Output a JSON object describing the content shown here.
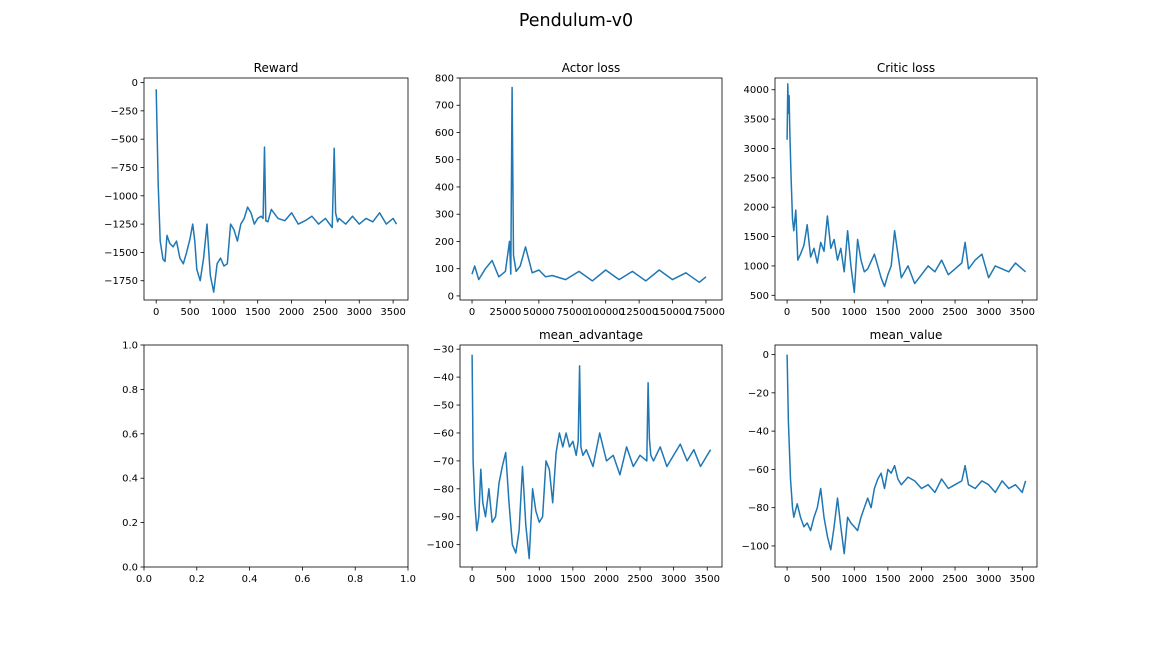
{
  "figure": {
    "suptitle": "Pendulum-v0"
  },
  "series_color": "#1f77b4",
  "chart_data": [
    {
      "id": "reward",
      "type": "line",
      "title": "Reward",
      "xlim": [
        -180,
        3720
      ],
      "ylim": [
        -1920,
        40
      ],
      "xticks": [
        0,
        500,
        1000,
        1500,
        2000,
        2500,
        3000,
        3500
      ],
      "xticklabels": [
        "0",
        "500",
        "1000",
        "1500",
        "2000",
        "2500",
        "3000",
        "3500"
      ],
      "yticks": [
        0,
        -250,
        -500,
        -750,
        -1000,
        -1250,
        -1500,
        -1750
      ],
      "yticklabels": [
        "0",
        "−250",
        "−500",
        "−750",
        "−1000",
        "−1250",
        "−1500",
        "−1750"
      ],
      "x": [
        0,
        30,
        60,
        100,
        130,
        160,
        200,
        250,
        300,
        350,
        400,
        450,
        500,
        540,
        570,
        600,
        650,
        700,
        750,
        800,
        850,
        900,
        950,
        1000,
        1050,
        1100,
        1150,
        1200,
        1250,
        1300,
        1350,
        1400,
        1450,
        1500,
        1550,
        1580,
        1600,
        1620,
        1650,
        1700,
        1800,
        1900,
        2000,
        2100,
        2200,
        2300,
        2400,
        2500,
        2600,
        2630,
        2650,
        2680,
        2700,
        2800,
        2900,
        3000,
        3100,
        3200,
        3300,
        3400,
        3500,
        3550
      ],
      "y": [
        -60,
        -900,
        -1400,
        -1560,
        -1580,
        -1350,
        -1420,
        -1450,
        -1400,
        -1550,
        -1600,
        -1500,
        -1380,
        -1250,
        -1400,
        -1650,
        -1750,
        -1550,
        -1250,
        -1700,
        -1850,
        -1600,
        -1550,
        -1620,
        -1600,
        -1250,
        -1300,
        -1400,
        -1250,
        -1200,
        -1100,
        -1150,
        -1250,
        -1200,
        -1180,
        -1200,
        -570,
        -1220,
        -1230,
        -1120,
        -1200,
        -1220,
        -1150,
        -1250,
        -1220,
        -1180,
        -1250,
        -1200,
        -1280,
        -580,
        -1150,
        -1230,
        -1200,
        -1250,
        -1180,
        -1250,
        -1200,
        -1230,
        -1150,
        -1250,
        -1200,
        -1250
      ]
    },
    {
      "id": "actor-loss",
      "type": "line",
      "title": "Actor loss",
      "xlim": [
        -9000,
        187000
      ],
      "ylim": [
        -15,
        800
      ],
      "xticks": [
        0,
        25000,
        50000,
        75000,
        100000,
        125000,
        150000,
        175000
      ],
      "xticklabels": [
        "0",
        "25000",
        "50000",
        "75000",
        "100000",
        "125000",
        "150000",
        "175000"
      ],
      "yticks": [
        0,
        100,
        200,
        300,
        400,
        500,
        600,
        700,
        800
      ],
      "yticklabels": [
        "0",
        "100",
        "200",
        "300",
        "400",
        "500",
        "600",
        "700",
        "800"
      ],
      "x": [
        0,
        2000,
        5000,
        10000,
        15000,
        20000,
        25000,
        28000,
        29000,
        30000,
        31000,
        33000,
        36000,
        40000,
        45000,
        50000,
        55000,
        60000,
        70000,
        80000,
        90000,
        100000,
        110000,
        120000,
        130000,
        140000,
        150000,
        160000,
        170000,
        175000
      ],
      "y": [
        80,
        110,
        60,
        100,
        130,
        70,
        90,
        200,
        80,
        765,
        150,
        90,
        110,
        180,
        85,
        95,
        70,
        75,
        60,
        90,
        55,
        95,
        60,
        90,
        55,
        95,
        60,
        85,
        50,
        70
      ]
    },
    {
      "id": "critic-loss",
      "type": "line",
      "title": "Critic loss",
      "xlim": [
        -180,
        3720
      ],
      "ylim": [
        420,
        4200
      ],
      "xticks": [
        0,
        500,
        1000,
        1500,
        2000,
        2500,
        3000,
        3500
      ],
      "xticklabels": [
        "0",
        "500",
        "1000",
        "1500",
        "2000",
        "2500",
        "3000",
        "3500"
      ],
      "yticks": [
        500,
        1000,
        1500,
        2000,
        2500,
        3000,
        3500,
        4000
      ],
      "yticklabels": [
        "500",
        "1000",
        "1500",
        "2000",
        "2500",
        "3000",
        "3500",
        "4000"
      ],
      "x": [
        0,
        10,
        20,
        30,
        40,
        60,
        80,
        100,
        130,
        160,
        200,
        250,
        300,
        350,
        400,
        450,
        500,
        550,
        600,
        650,
        700,
        750,
        800,
        850,
        900,
        950,
        1000,
        1050,
        1100,
        1150,
        1200,
        1300,
        1400,
        1450,
        1500,
        1550,
        1600,
        1700,
        1800,
        1900,
        2000,
        2100,
        2200,
        2300,
        2400,
        2500,
        2600,
        2650,
        2700,
        2800,
        2900,
        3000,
        3100,
        3200,
        3300,
        3400,
        3500,
        3550
      ],
      "y": [
        3150,
        4100,
        3600,
        3900,
        3300,
        2500,
        1800,
        1600,
        1950,
        1100,
        1200,
        1350,
        1700,
        1150,
        1300,
        1050,
        1400,
        1250,
        1850,
        1300,
        1450,
        1100,
        1300,
        900,
        1600,
        1000,
        550,
        1450,
        1100,
        900,
        950,
        1200,
        800,
        650,
        850,
        1000,
        1600,
        800,
        1000,
        700,
        850,
        1000,
        900,
        1100,
        850,
        950,
        1050,
        1400,
        950,
        1100,
        1200,
        800,
        1000,
        950,
        900,
        1050,
        950,
        900
      ]
    },
    {
      "id": "empty-axes",
      "type": "line",
      "title": "",
      "xlim": [
        0,
        1
      ],
      "ylim": [
        0,
        1
      ],
      "xticks": [
        0,
        0.2,
        0.4,
        0.6,
        0.8,
        1.0
      ],
      "xticklabels": [
        "0.0",
        "0.2",
        "0.4",
        "0.6",
        "0.8",
        "1.0"
      ],
      "yticks": [
        0,
        0.2,
        0.4,
        0.6,
        0.8,
        1.0
      ],
      "yticklabels": [
        "0.0",
        "0.2",
        "0.4",
        "0.6",
        "0.8",
        "1.0"
      ],
      "x": [],
      "y": []
    },
    {
      "id": "mean-advantage",
      "type": "line",
      "title": "mean_advantage",
      "xlim": [
        -180,
        3720
      ],
      "ylim": [
        -108,
        -28.5
      ],
      "xticks": [
        0,
        500,
        1000,
        1500,
        2000,
        2500,
        3000,
        3500
      ],
      "xticklabels": [
        "0",
        "500",
        "1000",
        "1500",
        "2000",
        "2500",
        "3000",
        "3500"
      ],
      "yticks": [
        -30,
        -40,
        -50,
        -60,
        -70,
        -80,
        -90,
        -100
      ],
      "yticklabels": [
        "−30",
        "−40",
        "−50",
        "−60",
        "−70",
        "−80",
        "−90",
        "−100"
      ],
      "x": [
        0,
        15,
        40,
        70,
        100,
        130,
        160,
        200,
        250,
        300,
        350,
        400,
        450,
        500,
        550,
        600,
        650,
        700,
        750,
        800,
        850,
        900,
        950,
        1000,
        1050,
        1100,
        1150,
        1200,
        1250,
        1300,
        1350,
        1400,
        1450,
        1500,
        1550,
        1580,
        1600,
        1620,
        1650,
        1700,
        1800,
        1900,
        2000,
        2100,
        2200,
        2300,
        2400,
        2500,
        2600,
        2620,
        2640,
        2660,
        2700,
        2800,
        2900,
        3000,
        3100,
        3200,
        3300,
        3400,
        3500,
        3550
      ],
      "y": [
        -32,
        -70,
        -85,
        -95,
        -90,
        -73,
        -85,
        -90,
        -80,
        -92,
        -90,
        -78,
        -72,
        -67,
        -85,
        -100,
        -103,
        -95,
        -72,
        -93,
        -105,
        -80,
        -88,
        -92,
        -90,
        -70,
        -73,
        -85,
        -67,
        -60,
        -65,
        -60,
        -65,
        -63,
        -68,
        -63,
        -36,
        -65,
        -68,
        -66,
        -72,
        -60,
        -70,
        -68,
        -75,
        -65,
        -72,
        -68,
        -70,
        -42,
        -62,
        -68,
        -70,
        -65,
        -72,
        -68,
        -64,
        -70,
        -66,
        -72,
        -68,
        -66
      ]
    },
    {
      "id": "mean-value",
      "type": "line",
      "title": "mean_value",
      "xlim": [
        -180,
        3720
      ],
      "ylim": [
        -111,
        5
      ],
      "xticks": [
        0,
        500,
        1000,
        1500,
        2000,
        2500,
        3000,
        3500
      ],
      "xticklabels": [
        "0",
        "500",
        "1000",
        "1500",
        "2000",
        "2500",
        "3000",
        "3500"
      ],
      "yticks": [
        0,
        -20,
        -40,
        -60,
        -80,
        -100
      ],
      "yticklabels": [
        "0",
        "−20",
        "−40",
        "−60",
        "−80",
        "−100"
      ],
      "x": [
        0,
        20,
        50,
        80,
        100,
        150,
        200,
        250,
        300,
        350,
        400,
        450,
        500,
        550,
        600,
        650,
        700,
        750,
        800,
        850,
        900,
        950,
        1000,
        1050,
        1100,
        1150,
        1200,
        1250,
        1300,
        1350,
        1400,
        1450,
        1500,
        1550,
        1600,
        1650,
        1700,
        1800,
        1900,
        2000,
        2100,
        2200,
        2300,
        2400,
        2500,
        2600,
        2650,
        2700,
        2800,
        2900,
        3000,
        3100,
        3200,
        3300,
        3400,
        3500,
        3550
      ],
      "y": [
        0,
        -35,
        -65,
        -80,
        -85,
        -78,
        -85,
        -90,
        -88,
        -92,
        -85,
        -80,
        -70,
        -85,
        -95,
        -102,
        -90,
        -75,
        -90,
        -104,
        -85,
        -88,
        -90,
        -92,
        -85,
        -80,
        -75,
        -80,
        -70,
        -65,
        -62,
        -70,
        -60,
        -62,
        -58,
        -65,
        -68,
        -64,
        -66,
        -70,
        -68,
        -72,
        -65,
        -70,
        -68,
        -66,
        -58,
        -68,
        -70,
        -66,
        -68,
        -72,
        -66,
        -70,
        -68,
        -72,
        -66
      ]
    }
  ]
}
